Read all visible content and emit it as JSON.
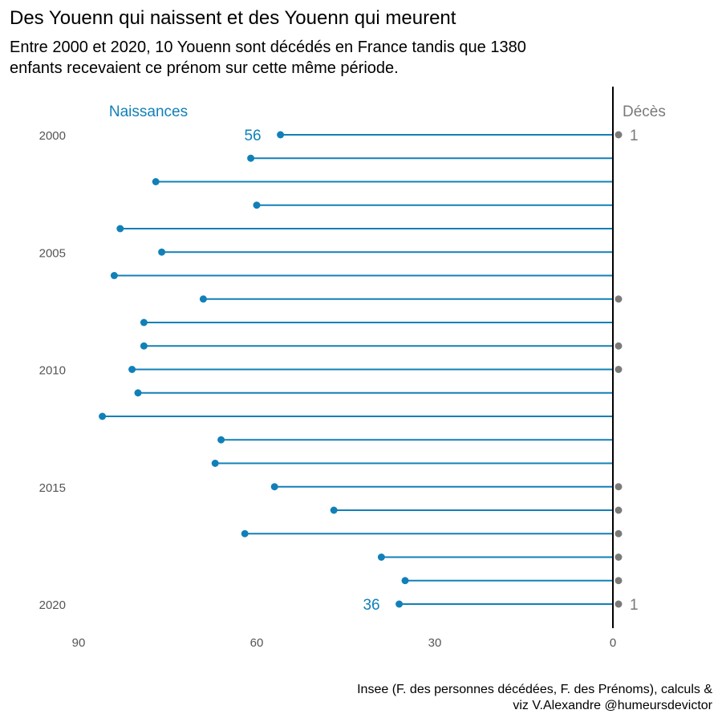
{
  "title": "Des Youenn qui naissent et des Youenn qui meurent",
  "subtitle_lines": [
    "Entre 2000 et 2020, 10 Youenn sont décédés en France tandis que 1380",
    "enfants recevaient ce prénom sur cette même période."
  ],
  "caption_lines": [
    "Insee (F. des personnes décédées, F. des Prénoms), calculs &",
    "viz V.Alexandre @humeursdevictor"
  ],
  "colors": {
    "births": "#1180b8",
    "deaths": "#7a7a7a",
    "axis": "#000000"
  },
  "chart_data": {
    "type": "lollipop",
    "series": [
      {
        "name": "Naissances",
        "values": [
          56,
          61,
          77,
          60,
          83,
          76,
          84,
          69,
          79,
          79,
          81,
          80,
          86,
          66,
          67,
          57,
          47,
          62,
          39,
          35,
          36
        ]
      },
      {
        "name": "Décès",
        "values": [
          1,
          null,
          null,
          null,
          null,
          null,
          null,
          1,
          null,
          1,
          1,
          null,
          null,
          null,
          null,
          1,
          1,
          1,
          1,
          1,
          1
        ]
      }
    ],
    "years": [
      2000,
      2001,
      2002,
      2003,
      2004,
      2005,
      2006,
      2007,
      2008,
      2009,
      2010,
      2011,
      2012,
      2013,
      2014,
      2015,
      2016,
      2017,
      2018,
      2019,
      2020
    ],
    "x_ticks": [
      "90",
      "60",
      "30",
      "0"
    ],
    "x_tick_values": [
      90,
      60,
      30,
      0
    ],
    "y_ticks": [
      "2000",
      "2005",
      "2010",
      "2015",
      "2020"
    ],
    "y_tick_values": [
      2000,
      2005,
      2010,
      2015,
      2020
    ],
    "value_labels": {
      "births_first": "56",
      "births_last": "36",
      "deaths_first": "1",
      "deaths_last": "1"
    },
    "xlim": [
      90,
      0
    ],
    "ylim": [
      2000,
      2020
    ]
  }
}
